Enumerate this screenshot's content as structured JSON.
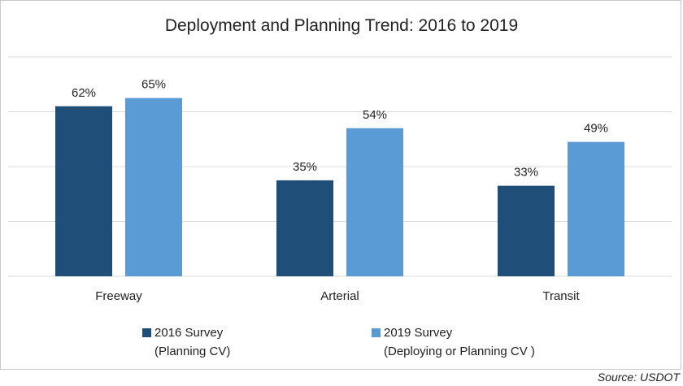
{
  "chart_data": {
    "type": "bar",
    "title": "Deployment and Planning Trend: 2016 to 2019",
    "categories": [
      "Freeway",
      "Arterial",
      "Transit"
    ],
    "series": [
      {
        "name": "2016 Survey",
        "subtitle": "(Planning CV)",
        "color": "#1f4e79",
        "values": [
          62,
          35,
          33
        ],
        "labels": [
          "62%",
          "35%",
          "33%"
        ]
      },
      {
        "name": "2019 Survey",
        "subtitle": "(Deploying or Planning CV )",
        "color": "#5b9bd5",
        "values": [
          65,
          54,
          49
        ],
        "labels": [
          "65%",
          "54%",
          "49%"
        ]
      }
    ],
    "ylim": [
      0,
      80
    ],
    "gridlines": [
      0,
      20,
      40,
      60,
      80
    ],
    "xlabel": "",
    "ylabel": "",
    "legend": "bottom"
  },
  "source": "Source: USDOT"
}
